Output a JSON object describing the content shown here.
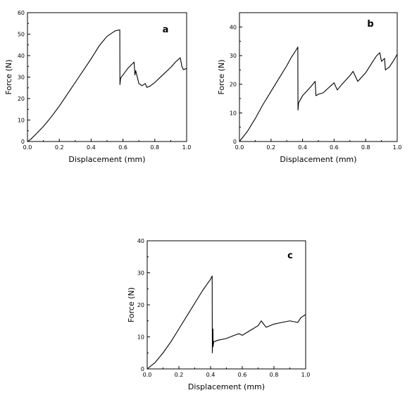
{
  "chart_data": [
    {
      "type": "line",
      "panel_label": "a",
      "xlabel": "Displacement (mm)",
      "ylabel": "Force (N)",
      "xlim": [
        0.0,
        1.0
      ],
      "ylim": [
        0,
        60
      ],
      "xticks": [
        "0.0",
        "0.2",
        "0.4",
        "0.6",
        "0.8",
        "1.0"
      ],
      "yticks": [
        "0",
        "10",
        "20",
        "30",
        "40",
        "50",
        "60"
      ],
      "grid": false,
      "color": "#000000",
      "series": [
        {
          "x": [
            0.0,
            0.02,
            0.05,
            0.1,
            0.15,
            0.2,
            0.25,
            0.3,
            0.35,
            0.4,
            0.45,
            0.5,
            0.55,
            0.58,
            0.581,
            0.585,
            0.6,
            0.63,
            0.67,
            0.675,
            0.68,
            0.7,
            0.72,
            0.74,
            0.75,
            0.77,
            0.8,
            0.85,
            0.9,
            0.93,
            0.96,
            0.97,
            0.98,
            1.0
          ],
          "y": [
            0.0,
            1.0,
            3.2,
            7.0,
            11.5,
            16.5,
            22.0,
            27.5,
            33.0,
            38.5,
            44.5,
            49.0,
            51.5,
            52.0,
            26.5,
            29.5,
            31.0,
            34.0,
            37.0,
            31.0,
            33.0,
            27.0,
            26.0,
            27.0,
            25.2,
            25.8,
            27.5,
            31.0,
            34.5,
            37.0,
            39.0,
            35.0,
            33.5,
            34.0
          ]
        }
      ]
    },
    {
      "type": "line",
      "panel_label": "b",
      "xlabel": "Displacement (mm)",
      "ylabel": "Force (N)",
      "xlim": [
        0.0,
        1.0
      ],
      "ylim": [
        0,
        45
      ],
      "xticks": [
        "0.0",
        "0.2",
        "0.4",
        "0.6",
        "0.8",
        "1.0"
      ],
      "yticks": [
        "0",
        "10",
        "20",
        "30",
        "40"
      ],
      "grid": false,
      "color": "#000000",
      "series": [
        {
          "x": [
            0.0,
            0.05,
            0.1,
            0.15,
            0.2,
            0.25,
            0.3,
            0.33,
            0.36,
            0.37,
            0.371,
            0.375,
            0.4,
            0.45,
            0.48,
            0.485,
            0.5,
            0.53,
            0.56,
            0.58,
            0.6,
            0.62,
            0.65,
            0.7,
            0.72,
            0.75,
            0.8,
            0.84,
            0.87,
            0.89,
            0.9,
            0.92,
            0.925,
            0.95,
            0.98,
            1.0
          ],
          "y": [
            0.0,
            3.5,
            8.0,
            13.0,
            17.5,
            22.0,
            26.5,
            29.5,
            32.0,
            33.0,
            11.0,
            13.5,
            16.0,
            19.0,
            21.0,
            16.0,
            16.5,
            17.0,
            18.5,
            19.5,
            20.5,
            18.0,
            20.0,
            23.0,
            24.5,
            21.0,
            24.0,
            27.5,
            30.0,
            31.0,
            28.0,
            29.0,
            25.0,
            26.0,
            28.5,
            30.5
          ]
        }
      ]
    },
    {
      "type": "line",
      "panel_label": "c",
      "xlabel": "Displacement (mm)",
      "ylabel": "Force (N)",
      "xlim": [
        0.0,
        1.0
      ],
      "ylim": [
        0,
        40
      ],
      "xticks": [
        "0.0",
        "0.2",
        "0.4",
        "0.6",
        "0.8",
        "1.0"
      ],
      "yticks": [
        "0",
        "10",
        "20",
        "30",
        "40"
      ],
      "grid": false,
      "color": "#000000",
      "series": [
        {
          "x": [
            0.0,
            0.05,
            0.1,
            0.15,
            0.2,
            0.25,
            0.3,
            0.35,
            0.4,
            0.41,
            0.411,
            0.415,
            0.416,
            0.42,
            0.45,
            0.5,
            0.55,
            0.58,
            0.6,
            0.65,
            0.7,
            0.72,
            0.75,
            0.8,
            0.85,
            0.9,
            0.95,
            0.97,
            1.0
          ],
          "y": [
            0.0,
            2.0,
            5.0,
            8.5,
            12.5,
            16.5,
            20.5,
            24.5,
            28.0,
            29.0,
            5.0,
            12.5,
            7.0,
            8.5,
            9.0,
            9.5,
            10.5,
            11.0,
            10.5,
            12.0,
            13.5,
            15.0,
            13.0,
            14.0,
            14.5,
            15.0,
            14.5,
            16.0,
            17.0
          ]
        }
      ]
    }
  ]
}
